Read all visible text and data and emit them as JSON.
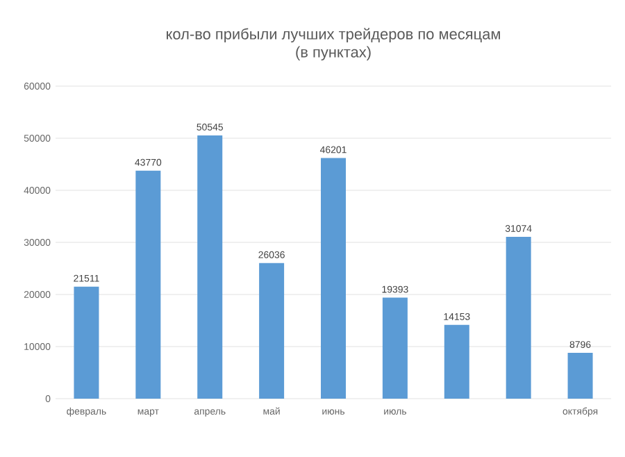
{
  "chart_data": {
    "type": "bar",
    "title": "кол-во прибыли лучших трейдеров по месяцам (в пунктах)",
    "categories": [
      "февраль",
      "март",
      "апрель",
      "май",
      "июнь",
      "июль",
      null,
      null,
      "октября"
    ],
    "values": [
      21511,
      43770,
      50545,
      26036,
      46201,
      19393,
      14153,
      31074,
      8796
    ],
    "color": "#5b9bd5",
    "ylim": [
      0,
      60000
    ],
    "yticks": [
      0,
      10000,
      20000,
      30000,
      40000,
      50000,
      60000
    ],
    "grid": "y",
    "data_labels": true
  }
}
